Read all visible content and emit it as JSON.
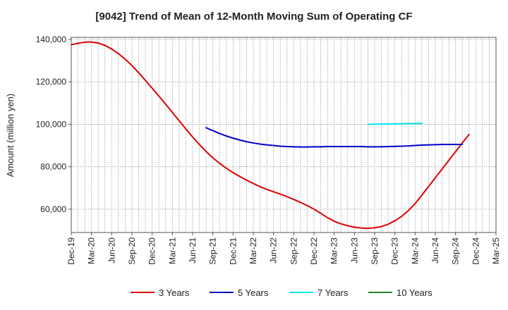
{
  "chart_data": {
    "type": "line",
    "title": "[9042]  Trend of Mean of 12-Month Moving Sum of Operating CF",
    "ylabel": "Amount (million yen)",
    "xlabel": "",
    "ylim": [
      49000,
      141000
    ],
    "yticks": [
      60000,
      80000,
      100000,
      120000,
      140000
    ],
    "ytick_labels": [
      "60,000",
      "80,000",
      "100,000",
      "120,000",
      "140,000"
    ],
    "x_month_range": [
      "2019-12",
      "2025-03"
    ],
    "xtick_labels": [
      "Dec-19",
      "Mar-20",
      "Jun-20",
      "Sep-20",
      "Dec-20",
      "Mar-21",
      "Jun-21",
      "Sep-21",
      "Dec-21",
      "Mar-22",
      "Jun-22",
      "Sep-22",
      "Dec-22",
      "Mar-23",
      "Jun-23",
      "Sep-23",
      "Dec-23",
      "Mar-24",
      "Jun-24",
      "Sep-24",
      "Dec-24",
      "Mar-25"
    ],
    "grid": true,
    "legend_position": "bottom",
    "series": [
      {
        "name": "3 Years",
        "color": "#dd0000",
        "start": "2019-12",
        "values": [
          137500,
          138200,
          138700,
          138800,
          138300,
          137200,
          135500,
          133300,
          130700,
          127700,
          124300,
          120700,
          117000,
          113300,
          109500,
          105600,
          101700,
          97800,
          94000,
          90500,
          87200,
          84200,
          81600,
          79300,
          77200,
          75400,
          73700,
          72100,
          70600,
          69300,
          68200,
          67100,
          65900,
          64600,
          63200,
          61700,
          60000,
          58100,
          56000,
          54300,
          53100,
          52200,
          51500,
          51100,
          51000,
          51200,
          51800,
          52900,
          54500,
          56600,
          59300,
          62600,
          66600,
          70700,
          74800,
          78900,
          83000,
          87100,
          91200,
          95200
        ]
      },
      {
        "name": "5 Years",
        "color": "#0000cc",
        "start": "2021-08",
        "values": [
          98400,
          97000,
          95700,
          94500,
          93500,
          92600,
          91800,
          91200,
          90700,
          90300,
          90000,
          89700,
          89500,
          89400,
          89300,
          89300,
          89400,
          89400,
          89500,
          89500,
          89500,
          89500,
          89500,
          89500,
          89400,
          89400,
          89400,
          89500,
          89600,
          89700,
          89800,
          90000,
          90200,
          90300,
          90400,
          90500,
          90500,
          90500,
          90500
        ]
      },
      {
        "name": "7 Years",
        "color": "#00e5ee",
        "start": "2023-08",
        "values": [
          100000,
          100050,
          100100,
          100150,
          100200,
          100250,
          100300,
          100350,
          100450
        ]
      },
      {
        "name": "10 Years",
        "color": "#228822",
        "start": "2019-12",
        "values": []
      }
    ]
  }
}
